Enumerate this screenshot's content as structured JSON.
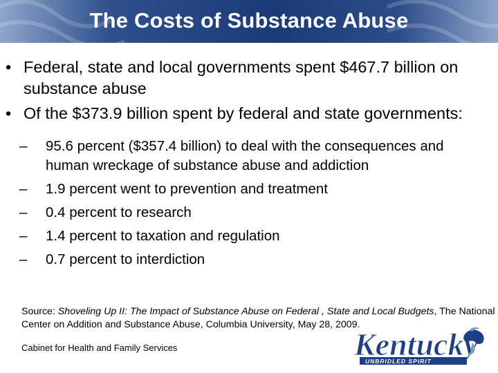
{
  "slide": {
    "title": "The Costs of Substance Abuse",
    "bullets": [
      "Federal, state and local governments spent $467.7 billion on substance abuse",
      "Of the $373.9 billion spent by federal and state governments:"
    ],
    "sub_bullets": [
      "95.6 percent ($357.4 billion) to deal with the consequences and human wreckage of substance abuse and addiction",
      "1.9 percent went to prevention and treatment",
      "0.4 percent to research",
      "1.4 percent to taxation and regulation",
      "0.7 percent to interdiction"
    ],
    "source_label": "Source: ",
    "source_title": "Shoveling Up II: The Impact of Substance Abuse on Federal , State and Local Budgets",
    "source_rest": ", The National Center on Addition and Substance Abuse, Columbia University, May 28, 2009.",
    "footer": "Cabinet for Health and Family Services",
    "logo_text": "Kentucky",
    "logo_tagline": "UNBRIDLED SPIRIT"
  },
  "colors": {
    "header": "#1c3a78",
    "logo_blue": "#1d3f86",
    "logo_light": "#7a9cc9"
  }
}
